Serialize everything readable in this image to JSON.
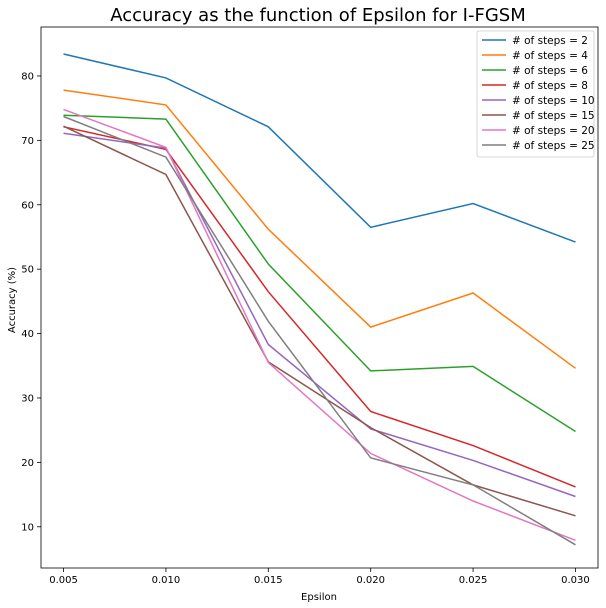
{
  "chart_data": {
    "type": "line",
    "title": "Accuracy as the function of Epsilon for I-FGSM",
    "xlabel": "Epsilon",
    "ylabel": "Accuracy (%)",
    "x": [
      0.005,
      0.01,
      0.015,
      0.02,
      0.025,
      0.03
    ],
    "x_tick_labels": [
      "0.005",
      "0.010",
      "0.015",
      "0.020",
      "0.025",
      "0.030"
    ],
    "xlim": [
      0.0039,
      0.0311
    ],
    "ylim": [
      3.6,
      87.6
    ],
    "y_ticks": [
      10,
      20,
      30,
      40,
      50,
      60,
      70,
      80
    ],
    "grid": false,
    "legend_position": "top-right",
    "series": [
      {
        "name": "# of steps = 2",
        "color": "#1f77b4",
        "values": [
          83.4,
          79.7,
          72.1,
          56.5,
          60.2,
          54.2
        ]
      },
      {
        "name": "# of steps = 4",
        "color": "#ff7f0e",
        "values": [
          77.8,
          75.5,
          56.2,
          41.0,
          46.3,
          34.6
        ]
      },
      {
        "name": "# of steps = 6",
        "color": "#2ca02c",
        "values": [
          73.9,
          73.3,
          50.8,
          34.2,
          34.9,
          24.8
        ]
      },
      {
        "name": "# of steps = 8",
        "color": "#d62728",
        "values": [
          72.1,
          68.6,
          46.5,
          27.9,
          22.6,
          16.2
        ]
      },
      {
        "name": "# of steps = 10",
        "color": "#9467bd",
        "values": [
          71.1,
          68.8,
          38.3,
          25.2,
          20.3,
          14.7
        ]
      },
      {
        "name": "# of steps = 15",
        "color": "#8c564b",
        "values": [
          72.2,
          64.7,
          35.6,
          25.4,
          16.5,
          11.7
        ]
      },
      {
        "name": "# of steps = 20",
        "color": "#e377c2",
        "values": [
          74.8,
          68.9,
          35.5,
          21.4,
          14.0,
          7.9
        ]
      },
      {
        "name": "# of steps = 25",
        "color": "#7f7f7f",
        "values": [
          73.7,
          67.4,
          41.9,
          20.7,
          16.5,
          7.2
        ]
      }
    ]
  }
}
